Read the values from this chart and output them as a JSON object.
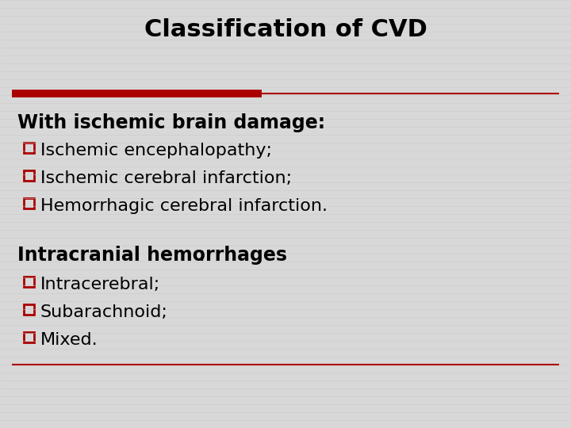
{
  "title": "Classification of CVD",
  "background_color": "#d8d8d8",
  "title_color": "#000000",
  "title_fontsize": 22,
  "red_line_color": "#aa0000",
  "section1_header": "With ischemic brain damage:",
  "section1_items": [
    "Ischemic encephalopathy;",
    "Ischemic cerebral infarction;",
    "Hemorrhagic cerebral infarction."
  ],
  "section2_header": "Intracranial hemorrhages",
  "section2_colon": ":",
  "section2_items": [
    "Intracerebral;",
    "Subarachnoid;",
    "Mixed."
  ],
  "header_fontsize": 17,
  "item_fontsize": 16,
  "text_color": "#000000",
  "checkbox_color": "#aa0000",
  "stripe_color": "#c8c8c8",
  "stripe_alpha": 0.7
}
